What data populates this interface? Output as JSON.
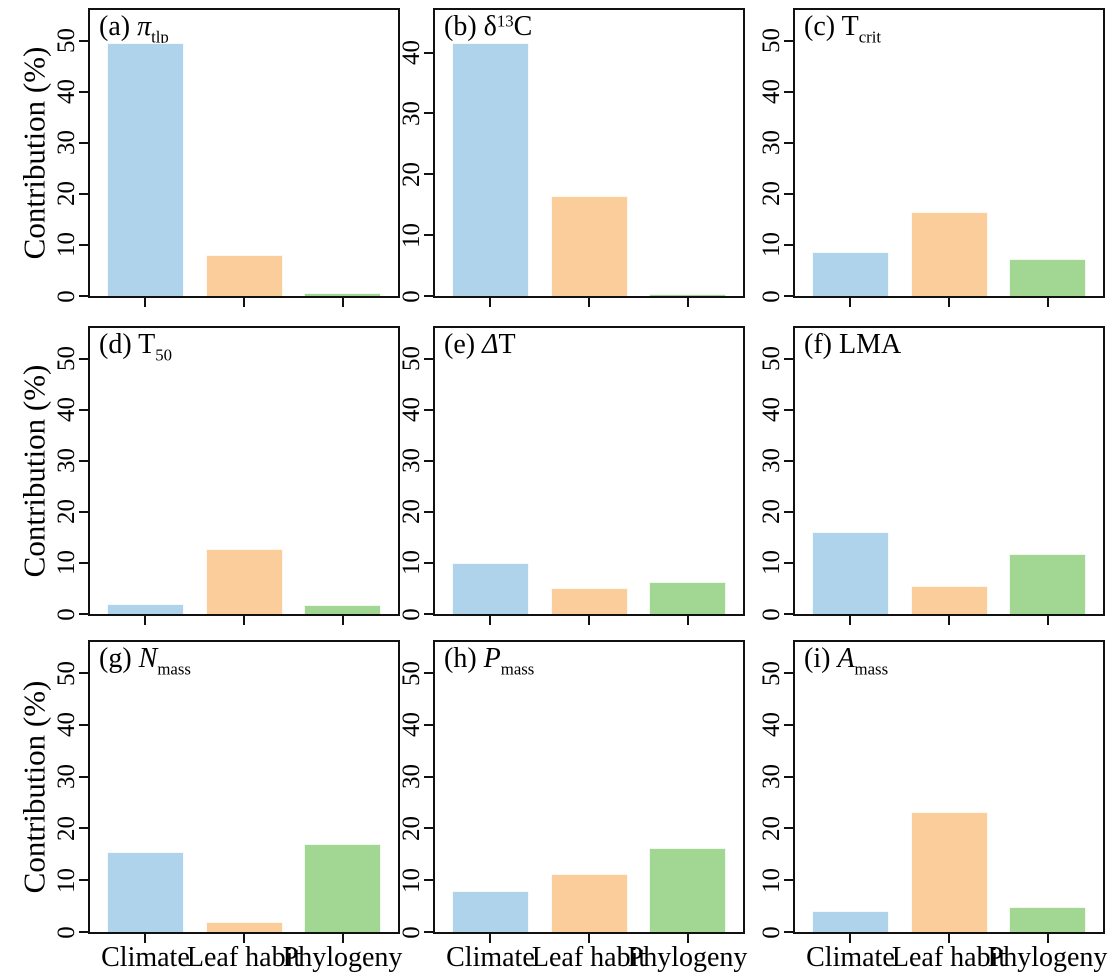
{
  "figure": {
    "ylabel": "Contribution (%)",
    "categories": [
      "Climate",
      "Leaf habit",
      "Phylogeny"
    ],
    "colors": {
      "climate": "#aed3ea",
      "leaf_habit": "#fbcd9b",
      "phylogeny": "#a2d693"
    }
  },
  "chart_data": {
    "type": "bar",
    "layout": "3x3-panel-grid",
    "ylabel": "Contribution (%)",
    "categories": [
      "Climate",
      "Leaf habit",
      "Phylogeny"
    ],
    "category_keys": [
      "climate",
      "leaf-habit",
      "phylogeny"
    ],
    "bar_colors": [
      "#aed3ea",
      "#fbcd9b",
      "#a2d693"
    ],
    "grid": false,
    "panels": [
      {
        "id": "a",
        "trait": "pi_tlp",
        "title_text": "(a) π_tlp",
        "title_segments": [
          {
            "text": "(a) "
          },
          {
            "text": "π",
            "style": "italic"
          },
          {
            "text": "tlp",
            "style": "sub"
          }
        ],
        "values": [
          49.5,
          8.0,
          0.6
        ],
        "yticks": [
          0,
          10,
          20,
          30,
          40,
          50
        ],
        "ymax": 56
      },
      {
        "id": "b",
        "trait": "delta13C",
        "title_text": "(b) δ13C",
        "title_segments": [
          {
            "text": "(b) δ"
          },
          {
            "text": "13",
            "style": "sup"
          },
          {
            "text": "C"
          }
        ],
        "values": [
          41.5,
          16.4,
          0.3
        ],
        "yticks": [
          0,
          10,
          20,
          30,
          40
        ],
        "ymax": 47
      },
      {
        "id": "c",
        "trait": "T_crit",
        "title_text": "(c) T_crit",
        "title_segments": [
          {
            "text": "(c) T"
          },
          {
            "text": "crit",
            "style": "sub"
          }
        ],
        "values": [
          8.6,
          16.5,
          7.2
        ],
        "yticks": [
          0,
          10,
          20,
          30,
          40,
          50
        ],
        "ymax": 56
      },
      {
        "id": "d",
        "trait": "T_50",
        "title_text": "(d) T_50",
        "title_segments": [
          {
            "text": "(d) T"
          },
          {
            "text": "50",
            "style": "sub"
          }
        ],
        "values": [
          2.0,
          12.8,
          1.8
        ],
        "yticks": [
          0,
          10,
          20,
          30,
          40,
          50
        ],
        "ymax": 56
      },
      {
        "id": "e",
        "trait": "delta_T",
        "title_text": "(e) ΔT",
        "title_segments": [
          {
            "text": "(e) "
          },
          {
            "text": "Δ",
            "style": "italic"
          },
          {
            "text": "T"
          }
        ],
        "values": [
          10.0,
          5.1,
          6.3
        ],
        "yticks": [
          0,
          10,
          20,
          30,
          40,
          50
        ],
        "ymax": 56
      },
      {
        "id": "f",
        "trait": "LMA",
        "title_text": "(f) LMA",
        "title_segments": [
          {
            "text": "(f) LMA"
          }
        ],
        "values": [
          16.0,
          5.5,
          11.8
        ],
        "yticks": [
          0,
          10,
          20,
          30,
          40,
          50
        ],
        "ymax": 56
      },
      {
        "id": "g",
        "trait": "N_mass",
        "title_text": "(g) N_mass",
        "title_segments": [
          {
            "text": "(g) "
          },
          {
            "text": "N",
            "style": "italic"
          },
          {
            "text": "mass",
            "style": "sub"
          }
        ],
        "values": [
          15.5,
          1.9,
          16.9
        ],
        "yticks": [
          0,
          10,
          20,
          30,
          40,
          50
        ],
        "ymax": 56
      },
      {
        "id": "h",
        "trait": "P_mass",
        "title_text": "(h) P_mass",
        "title_segments": [
          {
            "text": "(h) "
          },
          {
            "text": "P",
            "style": "italic"
          },
          {
            "text": "mass",
            "style": "sub"
          }
        ],
        "values": [
          8.0,
          11.2,
          16.3
        ],
        "yticks": [
          0,
          10,
          20,
          30,
          40,
          50
        ],
        "ymax": 56
      },
      {
        "id": "i",
        "trait": "A_mass",
        "title_text": "(i) A_mass",
        "title_segments": [
          {
            "text": "(i) "
          },
          {
            "text": "A",
            "style": "italic"
          },
          {
            "text": "mass",
            "style": "sub"
          }
        ],
        "values": [
          4.0,
          23.2,
          4.8
        ],
        "yticks": [
          0,
          10,
          20,
          30,
          40,
          50
        ],
        "ymax": 56
      }
    ]
  }
}
